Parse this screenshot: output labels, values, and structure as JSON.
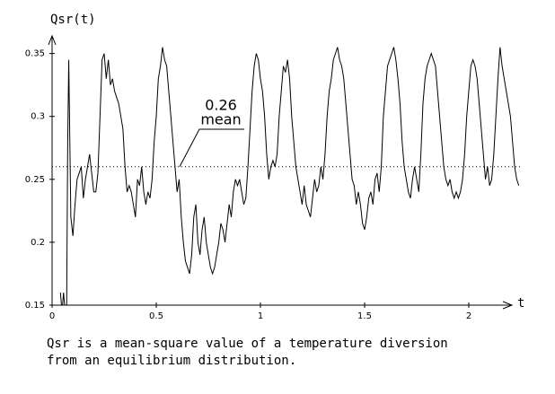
{
  "chart_data": {
    "type": "line",
    "y_label": "Qsr(t)",
    "x_label": "t",
    "caption": [
      "Qsr is a mean-square value of a temperature diversion",
      "from an equilibrium distribution."
    ],
    "mean_line": {
      "value": 0.26,
      "label": "mean"
    },
    "xlim": [
      0,
      2.25
    ],
    "ylim": [
      0.15,
      0.364
    ],
    "xticks": [
      0,
      0.5,
      1,
      1.5,
      2
    ],
    "yticks": [
      0.15,
      0.2,
      0.25,
      0.3,
      0.35
    ],
    "color": "#000000",
    "x": [
      0.04,
      0.045,
      0.05,
      0.055,
      0.06,
      0.07,
      0.075,
      0.08,
      0.09,
      0.1,
      0.11,
      0.12,
      0.13,
      0.14,
      0.15,
      0.16,
      0.17,
      0.18,
      0.19,
      0.2,
      0.21,
      0.22,
      0.23,
      0.24,
      0.25,
      0.26,
      0.27,
      0.28,
      0.29,
      0.3,
      0.31,
      0.32,
      0.33,
      0.34,
      0.35,
      0.36,
      0.37,
      0.38,
      0.39,
      0.4,
      0.41,
      0.42,
      0.43,
      0.44,
      0.45,
      0.46,
      0.47,
      0.48,
      0.49,
      0.5,
      0.51,
      0.52,
      0.53,
      0.54,
      0.55,
      0.56,
      0.57,
      0.58,
      0.59,
      0.6,
      0.61,
      0.62,
      0.63,
      0.64,
      0.65,
      0.66,
      0.67,
      0.68,
      0.69,
      0.7,
      0.71,
      0.72,
      0.73,
      0.74,
      0.75,
      0.76,
      0.77,
      0.78,
      0.79,
      0.8,
      0.81,
      0.82,
      0.83,
      0.84,
      0.85,
      0.86,
      0.87,
      0.88,
      0.89,
      0.9,
      0.91,
      0.92,
      0.93,
      0.94,
      0.95,
      0.96,
      0.97,
      0.98,
      0.99,
      1.0,
      1.01,
      1.02,
      1.03,
      1.04,
      1.05,
      1.06,
      1.07,
      1.08,
      1.09,
      1.1,
      1.11,
      1.12,
      1.13,
      1.14,
      1.15,
      1.16,
      1.17,
      1.18,
      1.19,
      1.2,
      1.21,
      1.22,
      1.23,
      1.24,
      1.25,
      1.26,
      1.27,
      1.28,
      1.29,
      1.3,
      1.31,
      1.32,
      1.33,
      1.34,
      1.35,
      1.36,
      1.37,
      1.38,
      1.39,
      1.4,
      1.41,
      1.42,
      1.43,
      1.44,
      1.45,
      1.46,
      1.47,
      1.48,
      1.49,
      1.5,
      1.51,
      1.52,
      1.53,
      1.54,
      1.55,
      1.56,
      1.57,
      1.58,
      1.59,
      1.6,
      1.61,
      1.62,
      1.63,
      1.64,
      1.65,
      1.66,
      1.67,
      1.68,
      1.69,
      1.7,
      1.71,
      1.72,
      1.73,
      1.74,
      1.75,
      1.76,
      1.77,
      1.78,
      1.79,
      1.8,
      1.81,
      1.82,
      1.83,
      1.84,
      1.85,
      1.86,
      1.87,
      1.88,
      1.89,
      1.9,
      1.91,
      1.92,
      1.93,
      1.94,
      1.95,
      1.96,
      1.97,
      1.98,
      1.99,
      2.0,
      2.01,
      2.02,
      2.03,
      2.04,
      2.05,
      2.06,
      2.07,
      2.08,
      2.09,
      2.1,
      2.11,
      2.12,
      2.13,
      2.14,
      2.15,
      2.16,
      2.17,
      2.18,
      2.19,
      2.2,
      2.21,
      2.22,
      2.23,
      2.24
    ],
    "values": [
      0.16,
      0.15,
      0.15,
      0.16,
      0.15,
      0.15,
      0.28,
      0.345,
      0.22,
      0.205,
      0.23,
      0.25,
      0.255,
      0.26,
      0.235,
      0.25,
      0.26,
      0.27,
      0.255,
      0.24,
      0.24,
      0.255,
      0.3,
      0.345,
      0.35,
      0.33,
      0.345,
      0.325,
      0.33,
      0.32,
      0.315,
      0.31,
      0.3,
      0.29,
      0.26,
      0.24,
      0.245,
      0.24,
      0.23,
      0.22,
      0.25,
      0.245,
      0.26,
      0.24,
      0.23,
      0.24,
      0.235,
      0.25,
      0.28,
      0.3,
      0.33,
      0.34,
      0.355,
      0.345,
      0.34,
      0.32,
      0.3,
      0.28,
      0.26,
      0.24,
      0.25,
      0.22,
      0.2,
      0.185,
      0.18,
      0.175,
      0.19,
      0.22,
      0.23,
      0.2,
      0.19,
      0.21,
      0.22,
      0.2,
      0.19,
      0.18,
      0.175,
      0.18,
      0.19,
      0.2,
      0.215,
      0.21,
      0.2,
      0.215,
      0.23,
      0.22,
      0.24,
      0.25,
      0.245,
      0.25,
      0.24,
      0.23,
      0.235,
      0.26,
      0.29,
      0.32,
      0.34,
      0.35,
      0.345,
      0.33,
      0.32,
      0.3,
      0.27,
      0.25,
      0.26,
      0.265,
      0.26,
      0.27,
      0.3,
      0.32,
      0.34,
      0.335,
      0.345,
      0.33,
      0.3,
      0.28,
      0.26,
      0.25,
      0.24,
      0.23,
      0.245,
      0.23,
      0.225,
      0.22,
      0.235,
      0.25,
      0.24,
      0.245,
      0.26,
      0.25,
      0.27,
      0.3,
      0.32,
      0.33,
      0.345,
      0.35,
      0.355,
      0.345,
      0.34,
      0.33,
      0.31,
      0.29,
      0.27,
      0.25,
      0.245,
      0.23,
      0.24,
      0.23,
      0.215,
      0.21,
      0.22,
      0.235,
      0.24,
      0.23,
      0.25,
      0.255,
      0.24,
      0.26,
      0.3,
      0.32,
      0.34,
      0.345,
      0.35,
      0.355,
      0.345,
      0.33,
      0.31,
      0.28,
      0.26,
      0.25,
      0.24,
      0.235,
      0.25,
      0.26,
      0.25,
      0.24,
      0.27,
      0.31,
      0.33,
      0.34,
      0.345,
      0.35,
      0.345,
      0.34,
      0.32,
      0.3,
      0.28,
      0.26,
      0.25,
      0.245,
      0.25,
      0.24,
      0.235,
      0.24,
      0.235,
      0.24,
      0.25,
      0.27,
      0.3,
      0.32,
      0.34,
      0.345,
      0.34,
      0.33,
      0.31,
      0.29,
      0.27,
      0.25,
      0.26,
      0.245,
      0.25,
      0.27,
      0.3,
      0.33,
      0.355,
      0.34,
      0.33,
      0.32,
      0.31,
      0.3,
      0.28,
      0.26,
      0.25,
      0.245
    ]
  }
}
